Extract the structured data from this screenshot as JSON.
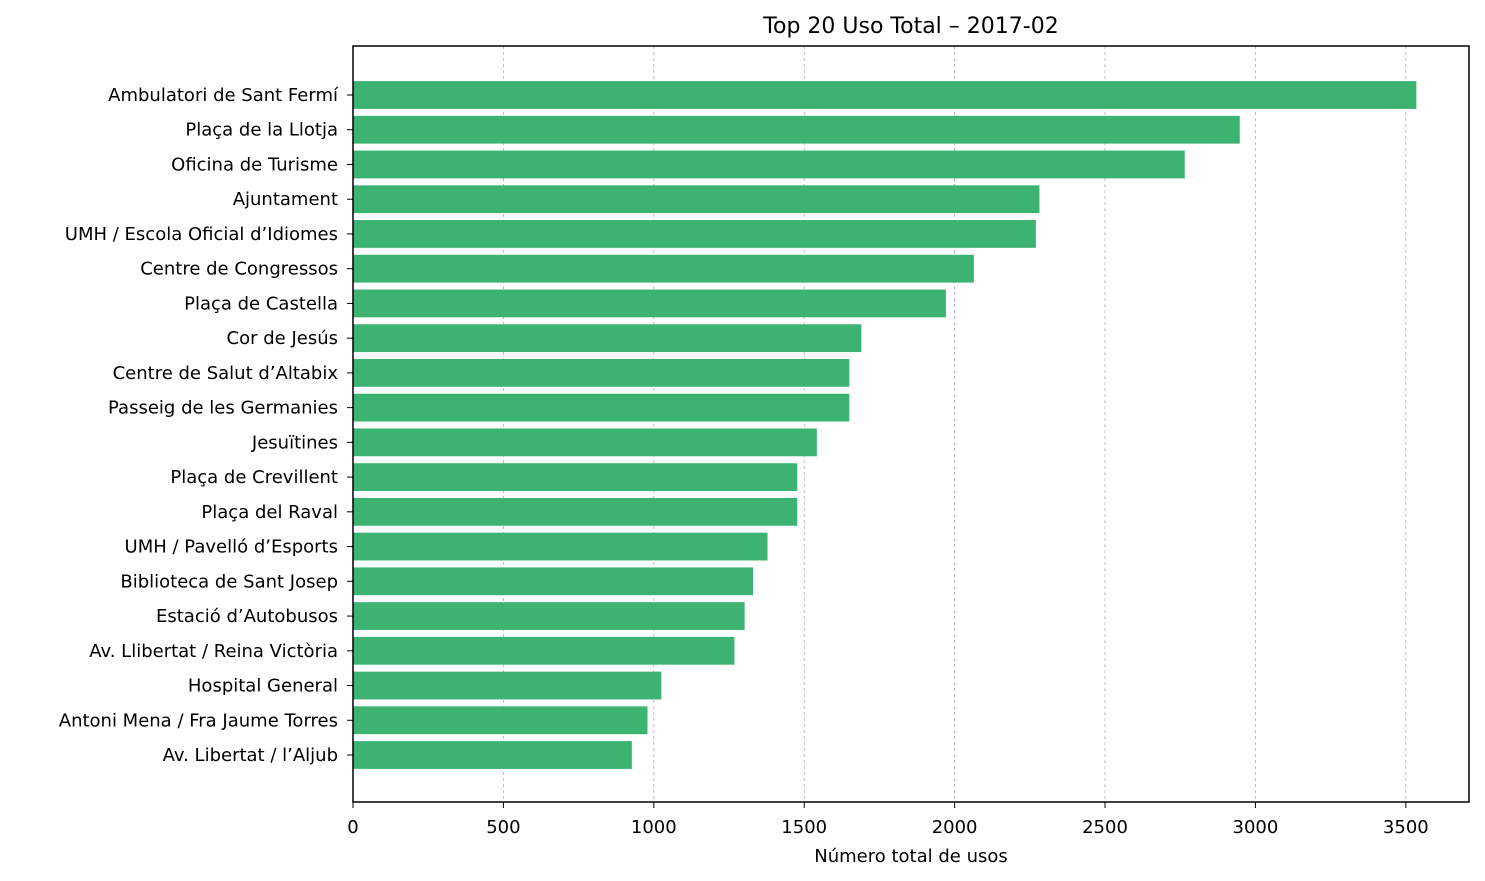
{
  "chart_data": {
    "type": "bar",
    "orientation": "horizontal",
    "title": "Top 20 Uso Total – 2017-02",
    "xlabel": "Número total de usos",
    "ylabel": "",
    "xlim": [
      0,
      3710
    ],
    "xticks": [
      0,
      500,
      1000,
      1500,
      2000,
      2500,
      3000,
      3500
    ],
    "grid": "vertical dashed",
    "bar_color": "#3cb371",
    "categories": [
      "Ambulatori de Sant Fermí",
      "Plaça de la Llotja",
      "Oficina de Turisme",
      "Ajuntament",
      "UMH / Escola Oficial d’Idiomes",
      "Centre de Congressos",
      "Plaça de Castella",
      "Cor de Jesús",
      "Centre de Salut d’Altabix",
      "Passeig de les Germanies",
      "Jesuïtines",
      "Plaça de Crevillent",
      "Plaça del Raval",
      "UMH / Pavelló d’Esports",
      "Biblioteca de Sant Josep",
      "Estació d’Autobusos",
      "Av. Llibertat / Reina Victòria",
      "Hospital General",
      "Antoni Mena / Fra Jaume Torres",
      "Av. Libertat / l’Aljub"
    ],
    "values": [
      3535,
      2948,
      2765,
      2282,
      2270,
      2064,
      1971,
      1690,
      1650,
      1650,
      1542,
      1477,
      1477,
      1378,
      1330,
      1302,
      1268,
      1025,
      979,
      927
    ]
  }
}
